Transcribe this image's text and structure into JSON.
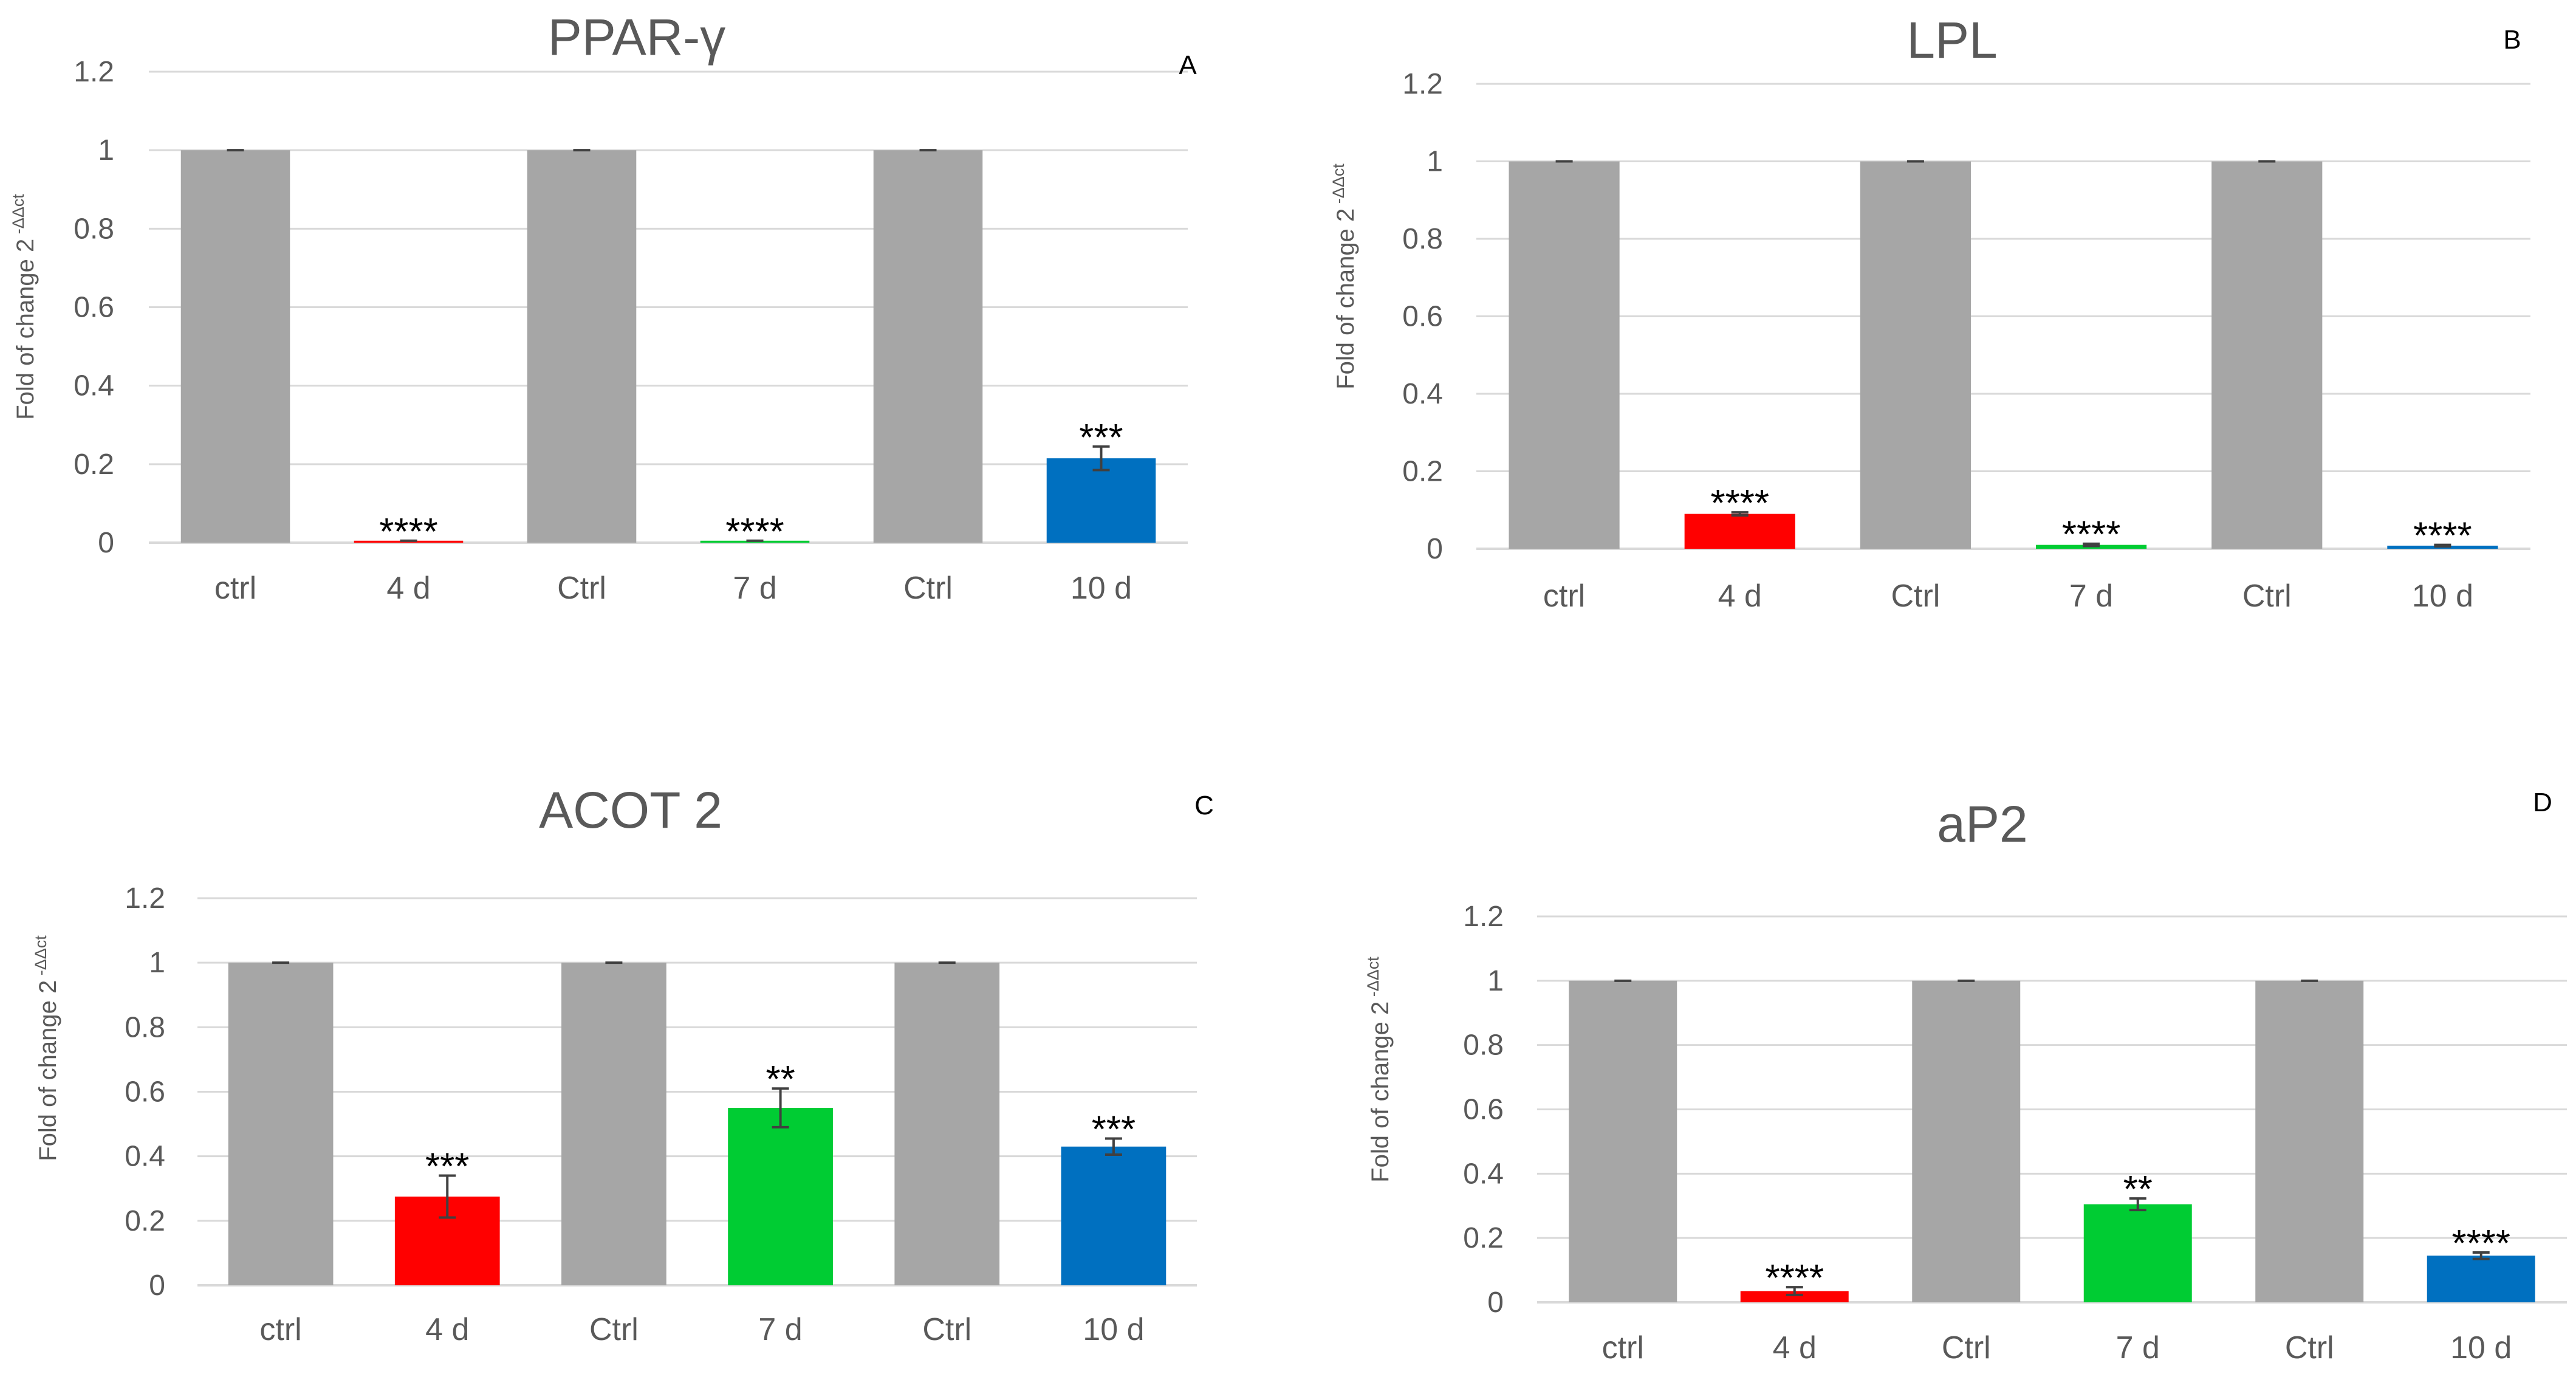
{
  "chart_data": [
    {
      "type": "bar",
      "title": "PPAR-γ",
      "panel_label": "A",
      "ylabel": "Fold of change 2",
      "ylabel_superscript": "-ΔΔct",
      "ylim": [
        0,
        1.2
      ],
      "y_ticks": [
        "0",
        "0.2",
        "0.4",
        "0.6",
        "0.8",
        "1",
        "1.2"
      ],
      "grid": true,
      "categories": [
        "ctrl",
        "4 d",
        "Ctrl",
        "7 d",
        "Ctrl",
        "10 d"
      ],
      "values": [
        1.0,
        0.005,
        1.0,
        0.005,
        1.0,
        0.215
      ],
      "errors": [
        0.0,
        0.0,
        0.0,
        0.0,
        0.0,
        0.03
      ],
      "colors": [
        "#a6a6a6",
        "#ff0000",
        "#a6a6a6",
        "#00cc33",
        "#a6a6a6",
        "#0070c0"
      ],
      "significance": [
        "",
        "****",
        "",
        "****",
        "",
        "***"
      ]
    },
    {
      "type": "bar",
      "title": "LPL",
      "panel_label": "B",
      "ylabel": "Fold of change 2",
      "ylabel_superscript": "-ΔΔct",
      "ylim": [
        0,
        1.2
      ],
      "y_ticks": [
        "0",
        "0.2",
        "0.4",
        "0.6",
        "0.8",
        "1",
        "1.2"
      ],
      "grid": true,
      "categories": [
        "ctrl",
        "4 d",
        "Ctrl",
        "7 d",
        "Ctrl",
        "10 d"
      ],
      "values": [
        1.0,
        0.09,
        1.0,
        0.01,
        1.0,
        0.008
      ],
      "errors": [
        0.0,
        0.004,
        0.0,
        0.003,
        0.0,
        0.002
      ],
      "colors": [
        "#a6a6a6",
        "#ff0000",
        "#a6a6a6",
        "#00cc33",
        "#a6a6a6",
        "#0070c0"
      ],
      "significance": [
        "",
        "****",
        "",
        "****",
        "",
        "****"
      ]
    },
    {
      "type": "bar",
      "title": "ACOT 2",
      "panel_label": "C",
      "ylabel": "Fold of change 2",
      "ylabel_superscript": "-ΔΔct",
      "ylim": [
        0,
        1.2
      ],
      "y_ticks": [
        "0",
        "0.2",
        "0.4",
        "0.6",
        "0.8",
        "1",
        "1.2"
      ],
      "grid": true,
      "categories": [
        "ctrl",
        "4 d",
        "Ctrl",
        "7 d",
        "Ctrl",
        "10 d"
      ],
      "values": [
        1.0,
        0.275,
        1.0,
        0.55,
        1.0,
        0.43
      ],
      "errors": [
        0.0,
        0.065,
        0.0,
        0.06,
        0.0,
        0.025
      ],
      "colors": [
        "#a6a6a6",
        "#ff0000",
        "#a6a6a6",
        "#00cc33",
        "#a6a6a6",
        "#0070c0"
      ],
      "significance": [
        "",
        "***",
        "",
        "**",
        "",
        "***"
      ]
    },
    {
      "type": "bar",
      "title": "aP2",
      "panel_label": "D",
      "ylabel": "Fold of change 2",
      "ylabel_superscript": "-ΔΔct",
      "ylim": [
        0,
        1.2
      ],
      "y_ticks": [
        "0",
        "0.2",
        "0.4",
        "0.6",
        "0.8",
        "1",
        "1.2"
      ],
      "grid": true,
      "categories": [
        "ctrl",
        "4 d",
        "Ctrl",
        "7 d",
        "Ctrl",
        "10 d"
      ],
      "values": [
        1.0,
        0.035,
        1.0,
        0.305,
        1.0,
        0.145
      ],
      "errors": [
        0.0,
        0.012,
        0.0,
        0.018,
        0.0,
        0.01
      ],
      "colors": [
        "#a6a6a6",
        "#ff0000",
        "#a6a6a6",
        "#00cc33",
        "#a6a6a6",
        "#0070c0"
      ],
      "significance": [
        "",
        "****",
        "",
        "**",
        "",
        "****"
      ]
    }
  ]
}
